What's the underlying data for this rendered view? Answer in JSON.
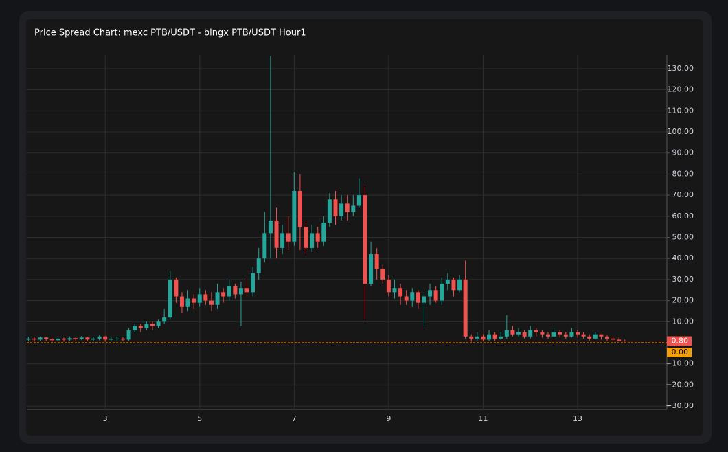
{
  "chart_data": {
    "type": "candlestick",
    "title": "Price Spread Chart: mexc PTB/USDT - bingx PTB/USDT Hour1",
    "up_color": "#26a69a",
    "down_color": "#ef5350",
    "grid": true,
    "xlim": [
      1.34,
      14.89
    ],
    "xticks": [
      3,
      5,
      7,
      9,
      11,
      13
    ],
    "ylim": [
      -31.6,
      136.5
    ],
    "yticks": [
      {
        "value": 130,
        "label": "130.00"
      },
      {
        "value": 120,
        "label": "120.00"
      },
      {
        "value": 110,
        "label": "110.00"
      },
      {
        "value": 100,
        "label": "100.00"
      },
      {
        "value": 90,
        "label": "90.00"
      },
      {
        "value": 80,
        "label": "80.00"
      },
      {
        "value": 70,
        "label": "70.00"
      },
      {
        "value": 60,
        "label": "60.00"
      },
      {
        "value": 50,
        "label": "50.00"
      },
      {
        "value": 40,
        "label": "40.00"
      },
      {
        "value": 30,
        "label": "30.00"
      },
      {
        "value": 20,
        "label": "20.00"
      },
      {
        "value": 10,
        "label": "10.00"
      },
      {
        "value": -10,
        "label": "−10.00"
      },
      {
        "value": -20,
        "label": "−20.00"
      },
      {
        "value": -30,
        "label": "−30.00"
      }
    ],
    "price_lines": [
      {
        "value": 0.8,
        "label": "0.80",
        "color": "#ef5350"
      },
      {
        "value": 0,
        "label": "0.00",
        "color": "#f59e0b"
      }
    ],
    "x": [
      1.375,
      1.5,
      1.625,
      1.75,
      1.875,
      2,
      2.125,
      2.25,
      2.375,
      2.5,
      2.625,
      2.75,
      2.875,
      3,
      3.125,
      3.25,
      3.375,
      3.5,
      3.625,
      3.75,
      3.875,
      4,
      4.125,
      4.25,
      4.375,
      4.5,
      4.625,
      4.75,
      4.875,
      5,
      5.125,
      5.25,
      5.375,
      5.5,
      5.625,
      5.75,
      5.875,
      6,
      6.125,
      6.25,
      6.375,
      6.5,
      6.625,
      6.75,
      6.875,
      7,
      7.125,
      7.25,
      7.375,
      7.5,
      7.625,
      7.75,
      7.875,
      8,
      8.125,
      8.25,
      8.375,
      8.5,
      8.625,
      8.75,
      8.875,
      9,
      9.125,
      9.25,
      9.375,
      9.5,
      9.625,
      9.75,
      9.875,
      10,
      10.125,
      10.25,
      10.375,
      10.5,
      10.625,
      10.75,
      10.875,
      11,
      11.125,
      11.25,
      11.375,
      11.5,
      11.625,
      11.75,
      11.875,
      12,
      12.125,
      12.25,
      12.375,
      12.5,
      12.625,
      12.75,
      12.875,
      13,
      13.125,
      13.25,
      13.375,
      13.5,
      13.625,
      13.75,
      13.875,
      14
    ],
    "open": [
      1.5,
      2,
      1.5,
      2.5,
      1.8,
      1.2,
      2,
      1.5,
      2.2,
      1.8,
      2.5,
      1.5,
      2,
      3,
      1.5,
      1.8,
      2,
      1.5,
      6,
      8,
      7,
      9,
      8,
      10,
      12,
      30,
      22,
      17,
      21,
      19,
      23,
      20,
      18,
      24,
      22,
      27,
      23,
      26,
      24,
      33,
      40,
      52,
      58,
      45,
      52,
      48,
      72,
      55,
      45,
      52,
      48,
      57,
      68,
      60,
      66,
      62,
      65,
      70,
      28,
      42,
      35,
      30,
      24,
      26,
      22,
      20,
      24,
      19,
      22,
      25,
      20,
      28,
      30,
      25,
      30,
      3,
      2,
      3,
      1.5,
      4,
      2,
      3,
      6,
      4,
      5,
      3,
      6,
      5,
      4,
      3,
      5,
      4,
      3,
      5,
      4,
      3,
      2,
      4,
      3,
      2,
      1.5,
      1
    ],
    "high": [
      2.8,
      2.5,
      3,
      2.8,
      2.2,
      2.5,
      2.4,
      3,
      2.5,
      3.2,
      2.8,
      2.6,
      3.5,
      3.2,
      2.5,
      2.7,
      2.5,
      7,
      9,
      9,
      10,
      10,
      11,
      16,
      34,
      31,
      24,
      25,
      23,
      26,
      25,
      24,
      28,
      26,
      30,
      28,
      29,
      30,
      36,
      45,
      62,
      136,
      64,
      56,
      60,
      81,
      80,
      58,
      56,
      55,
      60,
      71,
      72,
      70,
      70,
      70,
      78,
      75,
      48,
      45,
      37,
      32,
      30,
      28,
      25,
      26,
      25,
      24,
      28,
      27,
      31,
      33,
      31,
      32,
      39,
      4,
      5,
      4,
      6,
      5,
      5,
      13,
      8,
      7,
      6,
      8,
      7,
      6,
      5,
      7,
      6,
      5,
      7,
      6,
      5,
      4,
      5,
      4,
      3.5,
      3,
      2.5,
      1.5
    ],
    "low": [
      0.8,
      0.5,
      1,
      1,
      0.5,
      0.8,
      0.5,
      1,
      1,
      1.2,
      0.8,
      1,
      1.2,
      0.5,
      1,
      1,
      0.8,
      1,
      5,
      5,
      6,
      6,
      7,
      9,
      11,
      19,
      14,
      15,
      16,
      17,
      18,
      15,
      16,
      19,
      20,
      21,
      8,
      22,
      22,
      30,
      38,
      40,
      40,
      42,
      44,
      46,
      44,
      42,
      43,
      45,
      46,
      55,
      56,
      58,
      58,
      60,
      64,
      11,
      27,
      30,
      28,
      22,
      21,
      18,
      18,
      17,
      16,
      8,
      18,
      19,
      18,
      25,
      22,
      24,
      2,
      0.5,
      1,
      0.8,
      1,
      1,
      1.5,
      2,
      3,
      3,
      2,
      2,
      3,
      2.5,
      2,
      2.5,
      2.5,
      2,
      2.5,
      2.5,
      2,
      1,
      1.5,
      1.5,
      1,
      0.8,
      0.5,
      0.5
    ],
    "close": [
      2,
      1.5,
      2.5,
      1.8,
      1.2,
      2,
      1.5,
      2.2,
      1.8,
      2.5,
      1.5,
      2,
      3,
      1.5,
      1.8,
      2,
      1.5,
      6,
      8,
      7,
      9,
      8,
      10,
      12,
      30,
      22,
      17,
      21,
      19,
      23,
      20,
      18,
      24,
      22,
      27,
      23,
      26,
      24,
      33,
      40,
      52,
      58,
      45,
      52,
      48,
      72,
      55,
      45,
      52,
      48,
      57,
      68,
      60,
      66,
      62,
      65,
      70,
      28,
      42,
      35,
      30,
      24,
      26,
      22,
      20,
      24,
      19,
      22,
      25,
      20,
      28,
      30,
      25,
      30,
      3,
      2,
      3,
      1.5,
      4,
      2,
      3,
      6,
      4,
      5,
      3,
      6,
      5,
      4,
      3,
      5,
      4,
      3,
      5,
      4,
      3,
      2,
      4,
      3,
      2,
      1.5,
      1,
      0.8
    ]
  }
}
